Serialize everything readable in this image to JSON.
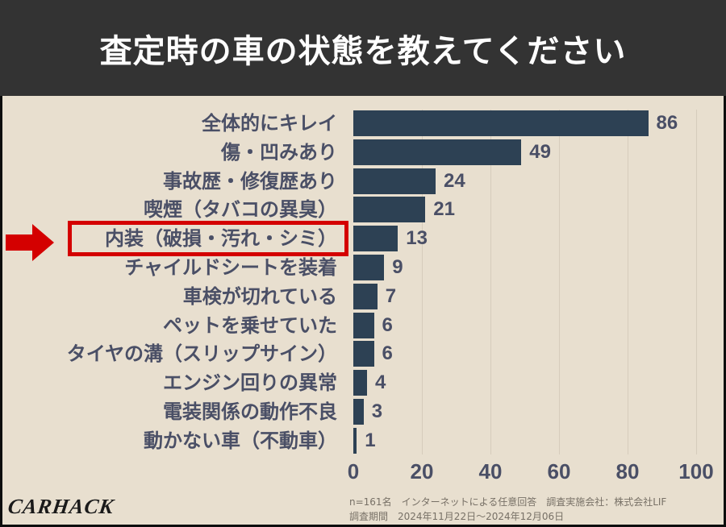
{
  "header": {
    "title": "査定時の車の状態を教えてください"
  },
  "chart_data": {
    "type": "bar",
    "orientation": "horizontal",
    "title": "査定時の車の状態を教えてください",
    "categories": [
      "全体的にキレイ",
      "傷・凹みあり",
      "事故歴・修復歴あり",
      "喫煙（タバコの異臭）",
      "内装（破損・汚れ・シミ）",
      "チャイルドシートを装着",
      "車検が切れている",
      "ペットを乗せていた",
      "タイヤの溝（スリップサイン）",
      "エンジン回りの異常",
      "電装関係の動作不良",
      "動かない車（不動車）"
    ],
    "values": [
      86,
      49,
      24,
      21,
      13,
      9,
      7,
      6,
      6,
      4,
      3,
      1
    ],
    "xlabel": "",
    "ylabel": "",
    "xlim": [
      0,
      100
    ],
    "xticks": [
      "0",
      "20",
      "40",
      "60",
      "80",
      "100"
    ],
    "grid": true,
    "bar_color": "#2d4154",
    "highlighted_category": "内装（破損・汚れ・シミ）",
    "highlight_color": "#d40000"
  },
  "labels": {
    "values": [
      "86",
      "49",
      "24",
      "21",
      "13",
      "9",
      "7",
      "6",
      "6",
      "4",
      "3",
      "1"
    ]
  },
  "footer": {
    "logo": "CARHACK",
    "note_line1": "n=161名　インターネットによる任意回答　調査実施会社：株式会社LIF",
    "note_line2": "調査期間　2024年11月22日〜2024年12月06日"
  },
  "colors": {
    "header_bg": "#333333",
    "panel_bg": "#e8dfcf",
    "text": "#4a4f66",
    "accent": "#d40000"
  }
}
